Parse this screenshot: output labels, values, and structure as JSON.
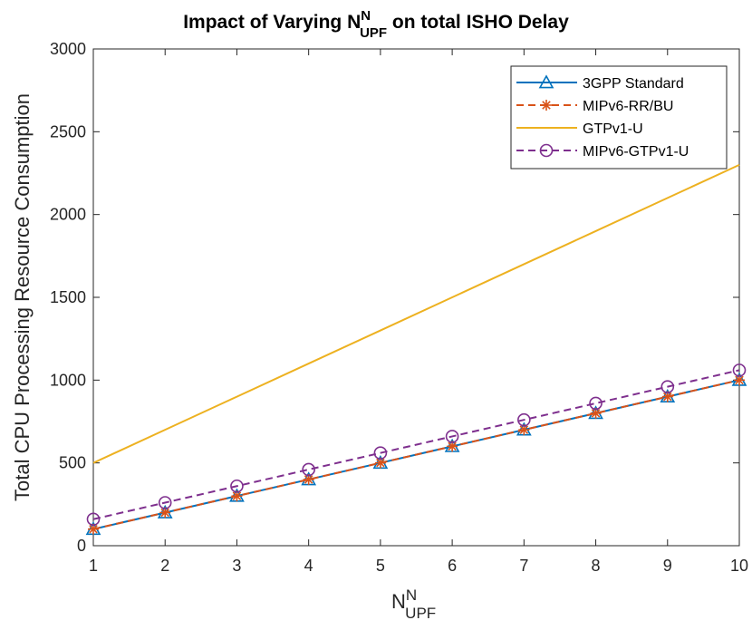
{
  "chart_data": {
    "type": "line",
    "title": {
      "prefix": "Impact of Varying N",
      "sup": "N",
      "sub": "UPF",
      "suffix": " on total ISHO Delay"
    },
    "xlabel": {
      "base": "N",
      "sup": "N",
      "sub": "UPF"
    },
    "ylabel": "Total CPU Processing Resource Consumption",
    "x": [
      1,
      2,
      3,
      4,
      5,
      6,
      7,
      8,
      9,
      10
    ],
    "xlim": [
      1,
      10
    ],
    "ylim": [
      0,
      3000
    ],
    "xticks": [
      "1",
      "2",
      "3",
      "4",
      "5",
      "6",
      "7",
      "8",
      "9",
      "10"
    ],
    "yticks": [
      "0",
      "500",
      "1000",
      "1500",
      "2000",
      "2500",
      "3000"
    ],
    "grid": false,
    "legend_position": "top-right",
    "series": [
      {
        "name": "3GPP Standard",
        "values": [
          100,
          200,
          300,
          400,
          500,
          600,
          700,
          800,
          900,
          1000
        ],
        "color": "#0072BD",
        "dash": "solid",
        "marker": "triangle"
      },
      {
        "name": "MIPv6-RR/BU",
        "values": [
          100,
          200,
          300,
          400,
          500,
          600,
          700,
          800,
          900,
          1000
        ],
        "color": "#D95319",
        "dash": "dashed",
        "marker": "asterisk"
      },
      {
        "name": "GTPv1-U",
        "values": [
          500,
          700,
          900,
          1100,
          1300,
          1500,
          1700,
          1900,
          2100,
          2300
        ],
        "color": "#EDB120",
        "dash": "solid",
        "marker": "none"
      },
      {
        "name": "MIPv6-GTPv1-U",
        "values": [
          160,
          260,
          360,
          460,
          560,
          660,
          760,
          860,
          960,
          1060
        ],
        "color": "#7E2F8E",
        "dash": "dashed",
        "marker": "circle"
      }
    ]
  }
}
